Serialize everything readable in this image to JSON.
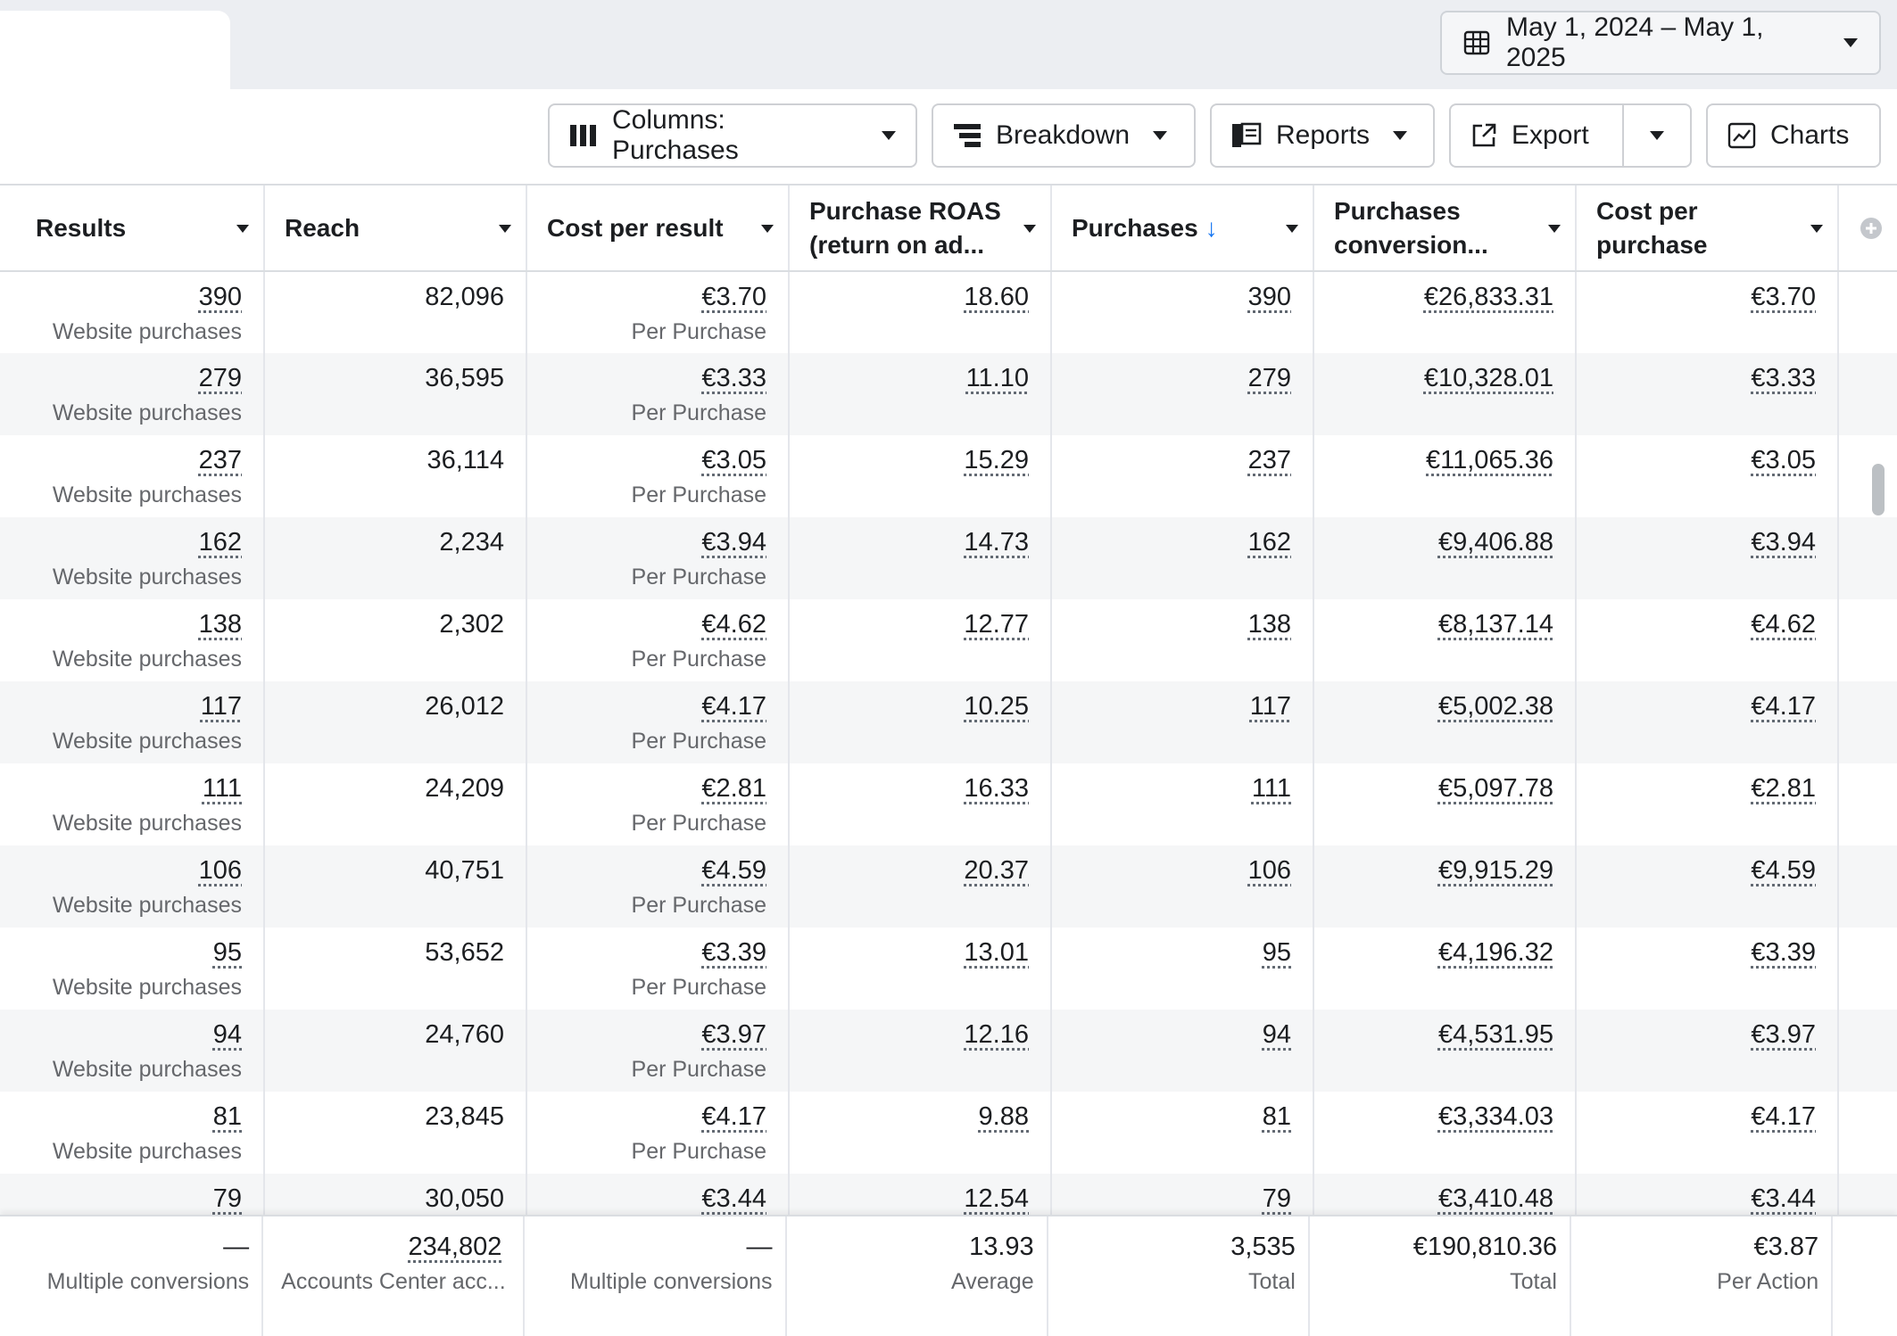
{
  "date_range": {
    "label": "May 1, 2024 – May 1, 2025",
    "icon": "calendar-grid-icon"
  },
  "toolbar": {
    "columns_label": "Columns: Purchases",
    "breakdown_label": "Breakdown",
    "reports_label": "Reports",
    "export_label": "Export",
    "charts_label": "Charts"
  },
  "table": {
    "headers": {
      "results": "Results",
      "reach": "Reach",
      "cost_per_result": "Cost per result",
      "roas_line1": "Purchase ROAS",
      "roas_line2": "(return on ad...",
      "purchases": "Purchases",
      "purchases_sort": "↓",
      "conv_line1": "Purchases",
      "conv_line2": "conversion...",
      "cpp_line1": "Cost per",
      "cpp_line2": "purchase"
    },
    "result_sub": "Website purchases",
    "cost_sub": "Per Purchase",
    "rows": [
      {
        "results": "390",
        "reach": "82,096",
        "cost": "€3.70",
        "roas": "18.60",
        "purchases": "390",
        "conv": "€26,833.31",
        "cpp": "€3.70"
      },
      {
        "results": "279",
        "reach": "36,595",
        "cost": "€3.33",
        "roas": "11.10",
        "purchases": "279",
        "conv": "€10,328.01",
        "cpp": "€3.33"
      },
      {
        "results": "237",
        "reach": "36,114",
        "cost": "€3.05",
        "roas": "15.29",
        "purchases": "237",
        "conv": "€11,065.36",
        "cpp": "€3.05"
      },
      {
        "results": "162",
        "reach": "2,234",
        "cost": "€3.94",
        "roas": "14.73",
        "purchases": "162",
        "conv": "€9,406.88",
        "cpp": "€3.94"
      },
      {
        "results": "138",
        "reach": "2,302",
        "cost": "€4.62",
        "roas": "12.77",
        "purchases": "138",
        "conv": "€8,137.14",
        "cpp": "€4.62"
      },
      {
        "results": "117",
        "reach": "26,012",
        "cost": "€4.17",
        "roas": "10.25",
        "purchases": "117",
        "conv": "€5,002.38",
        "cpp": "€4.17"
      },
      {
        "results": "111",
        "reach": "24,209",
        "cost": "€2.81",
        "roas": "16.33",
        "purchases": "111",
        "conv": "€5,097.78",
        "cpp": "€2.81"
      },
      {
        "results": "106",
        "reach": "40,751",
        "cost": "€4.59",
        "roas": "20.37",
        "purchases": "106",
        "conv": "€9,915.29",
        "cpp": "€4.59"
      },
      {
        "results": "95",
        "reach": "53,652",
        "cost": "€3.39",
        "roas": "13.01",
        "purchases": "95",
        "conv": "€4,196.32",
        "cpp": "€3.39"
      },
      {
        "results": "94",
        "reach": "24,760",
        "cost": "€3.97",
        "roas": "12.16",
        "purchases": "94",
        "conv": "€4,531.95",
        "cpp": "€3.97"
      },
      {
        "results": "81",
        "reach": "23,845",
        "cost": "€4.17",
        "roas": "9.88",
        "purchases": "81",
        "conv": "€3,334.03",
        "cpp": "€4.17"
      },
      {
        "results": "79",
        "reach": "30,050",
        "cost": "€3.44",
        "roas": "12.54",
        "purchases": "79",
        "conv": "€3,410.48",
        "cpp": "€3.44"
      }
    ],
    "totals": {
      "results": {
        "value": "—",
        "sub": "Multiple conversions"
      },
      "reach": {
        "value": "234,802",
        "sub": "Accounts Center acc..."
      },
      "cost": {
        "value": "—",
        "sub": "Multiple conversions"
      },
      "roas": {
        "value": "13.93",
        "sub": "Average"
      },
      "purchases": {
        "value": "3,535",
        "sub": "Total"
      },
      "conv": {
        "value": "€190,810.36",
        "sub": "Total"
      },
      "cpp": {
        "value": "€3.87",
        "sub": "Per Action"
      }
    }
  },
  "colors": {
    "accent": "#1877f2",
    "border": "#ced0d4",
    "stripe": "#f5f6f7",
    "muted": "#65676b"
  }
}
